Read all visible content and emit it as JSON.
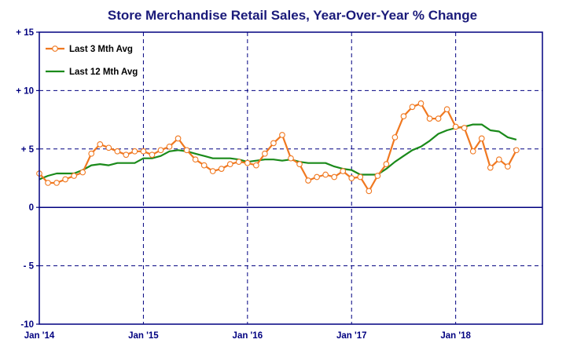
{
  "chart_data": {
    "type": "line",
    "title": "Store Merchandise Retail Sales, Year-Over-Year % Change",
    "ylim": [
      -10,
      15
    ],
    "yticks": [
      {
        "value": 15,
        "label": "+ 15"
      },
      {
        "value": 10,
        "label": "+ 10"
      },
      {
        "value": 5,
        "label": "+ 5"
      },
      {
        "value": 0,
        "label": "0"
      },
      {
        "value": -5,
        "label": "- 5"
      },
      {
        "value": -10,
        "label": "-10"
      }
    ],
    "xticks": [
      {
        "index": 0,
        "label": "Jan '14"
      },
      {
        "index": 12,
        "label": "Jan '15"
      },
      {
        "index": 24,
        "label": "Jan '16"
      },
      {
        "index": 36,
        "label": "Jan '17"
      },
      {
        "index": 48,
        "label": "Jan '18"
      }
    ],
    "x_start": "2014-01",
    "x_count": 59,
    "legend_position": "top-left",
    "grid": true,
    "colors": {
      "title": "#1a1a7a",
      "axis": "#000080",
      "grid": "#000080",
      "series3": "#f07820",
      "series12": "#1a8a1a"
    },
    "series": [
      {
        "name": "Last 3 Mth Avg",
        "style": "line-markers",
        "values": [
          2.9,
          2.1,
          2.1,
          2.4,
          2.7,
          3.0,
          4.6,
          5.4,
          5.1,
          4.8,
          4.5,
          4.8,
          4.8,
          4.5,
          4.9,
          5.2,
          5.9,
          4.9,
          4.1,
          3.6,
          3.1,
          3.3,
          3.7,
          3.9,
          3.8,
          3.6,
          4.6,
          5.5,
          6.2,
          4.2,
          3.7,
          2.3,
          2.6,
          2.8,
          2.6,
          3.1,
          2.5,
          2.6,
          1.4,
          2.7,
          3.7,
          6.0,
          7.8,
          8.6,
          8.9,
          7.6,
          7.6,
          8.4,
          6.9,
          6.8,
          4.8,
          5.9,
          3.4,
          4.1,
          3.5,
          4.9
        ]
      },
      {
        "name": "Last 12 Mth Avg",
        "style": "line",
        "values": [
          2.4,
          2.7,
          2.9,
          2.9,
          2.9,
          3.2,
          3.6,
          3.7,
          3.6,
          3.8,
          3.8,
          3.8,
          4.2,
          4.2,
          4.4,
          4.8,
          4.9,
          4.8,
          4.6,
          4.4,
          4.2,
          4.2,
          4.2,
          4.1,
          3.9,
          4.0,
          4.1,
          4.1,
          4.0,
          4.1,
          3.9,
          3.8,
          3.8,
          3.8,
          3.5,
          3.3,
          3.2,
          2.8,
          2.8,
          2.8,
          3.3,
          3.9,
          4.4,
          4.9,
          5.2,
          5.7,
          6.3,
          6.6,
          6.8,
          6.9,
          7.1,
          7.1,
          6.6,
          6.5,
          6.0,
          5.8
        ]
      }
    ]
  }
}
